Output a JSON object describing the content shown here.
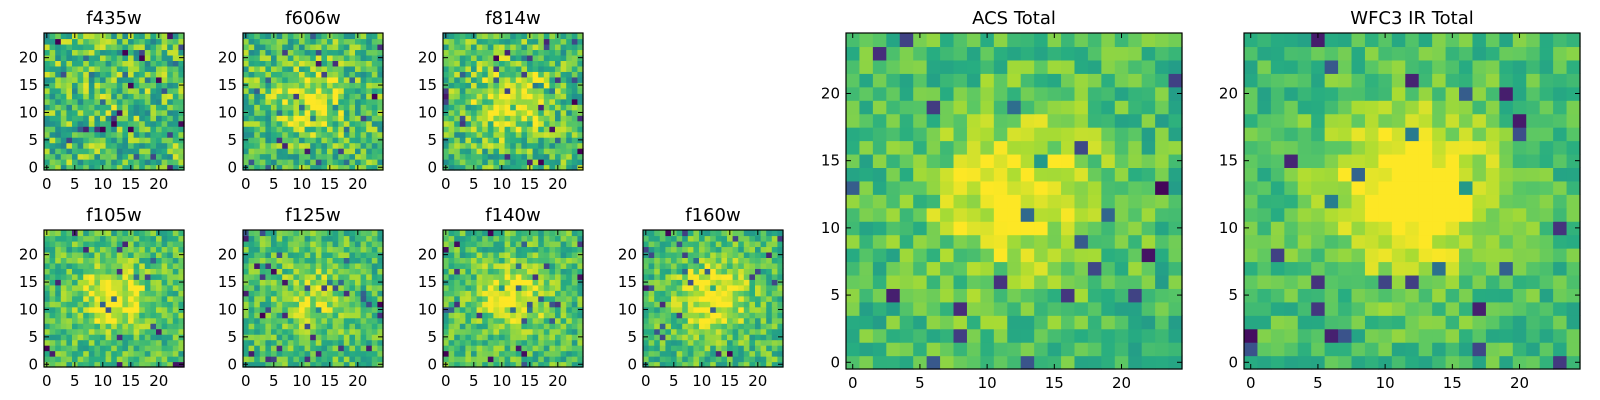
{
  "chart_data": [
    {
      "type": "heatmap",
      "title": "f435w",
      "grid_size": 25,
      "xlim": [
        0,
        24
      ],
      "ylim": [
        0,
        24
      ],
      "xticks": [
        0,
        5,
        10,
        15,
        20
      ],
      "yticks": [
        0,
        5,
        10,
        15,
        20
      ],
      "colormap": "viridis",
      "noise": 0.5,
      "blob": 0.05,
      "seed": 11
    },
    {
      "type": "heatmap",
      "title": "f606w",
      "grid_size": 25,
      "xlim": [
        0,
        24
      ],
      "ylim": [
        0,
        24
      ],
      "xticks": [
        0,
        5,
        10,
        15,
        20
      ],
      "yticks": [
        0,
        5,
        10,
        15,
        20
      ],
      "colormap": "viridis",
      "noise": 0.45,
      "blob": 0.25,
      "seed": 23
    },
    {
      "type": "heatmap",
      "title": "f814w",
      "grid_size": 25,
      "xlim": [
        0,
        24
      ],
      "ylim": [
        0,
        24
      ],
      "xticks": [
        0,
        5,
        10,
        15,
        20
      ],
      "yticks": [
        0,
        5,
        10,
        15,
        20
      ],
      "colormap": "viridis",
      "noise": 0.45,
      "blob": 0.3,
      "seed": 37
    },
    {
      "type": "heatmap",
      "title": "f105w",
      "grid_size": 25,
      "xlim": [
        0,
        24
      ],
      "ylim": [
        0,
        24
      ],
      "xticks": [
        0,
        5,
        10,
        15,
        20
      ],
      "yticks": [
        0,
        5,
        10,
        15,
        20
      ],
      "colormap": "viridis",
      "noise": 0.35,
      "blob": 0.3,
      "seed": 41
    },
    {
      "type": "heatmap",
      "title": "f125w",
      "grid_size": 25,
      "xlim": [
        0,
        24
      ],
      "ylim": [
        0,
        24
      ],
      "xticks": [
        0,
        5,
        10,
        15,
        20
      ],
      "yticks": [
        0,
        5,
        10,
        15,
        20
      ],
      "colormap": "viridis",
      "noise": 0.35,
      "blob": 0.2,
      "seed": 53
    },
    {
      "type": "heatmap",
      "title": "f140w",
      "grid_size": 25,
      "xlim": [
        0,
        24
      ],
      "ylim": [
        0,
        24
      ],
      "xticks": [
        0,
        5,
        10,
        15,
        20
      ],
      "yticks": [
        0,
        5,
        10,
        15,
        20
      ],
      "colormap": "viridis",
      "noise": 0.35,
      "blob": 0.3,
      "seed": 67
    },
    {
      "type": "heatmap",
      "title": "f160w",
      "grid_size": 25,
      "xlim": [
        0,
        24
      ],
      "ylim": [
        0,
        24
      ],
      "xticks": [
        0,
        5,
        10,
        15,
        20
      ],
      "yticks": [
        0,
        5,
        10,
        15,
        20
      ],
      "colormap": "viridis",
      "noise": 0.35,
      "blob": 0.35,
      "seed": 79
    },
    {
      "type": "heatmap",
      "title": "ACS Total",
      "grid_size": 25,
      "xlim": [
        0,
        24
      ],
      "ylim": [
        0,
        24
      ],
      "xticks": [
        0,
        5,
        10,
        15,
        20
      ],
      "yticks": [
        0,
        5,
        10,
        15,
        20
      ],
      "colormap": "viridis",
      "noise": 0.3,
      "blob": 0.35,
      "seed": 97
    },
    {
      "type": "heatmap",
      "title": "WFC3 IR Total",
      "grid_size": 25,
      "xlim": [
        0,
        24
      ],
      "ylim": [
        0,
        24
      ],
      "xticks": [
        0,
        5,
        10,
        15,
        20
      ],
      "yticks": [
        0,
        5,
        10,
        15,
        20
      ],
      "colormap": "viridis",
      "noise": 0.25,
      "blob": 0.45,
      "seed": 131
    }
  ]
}
